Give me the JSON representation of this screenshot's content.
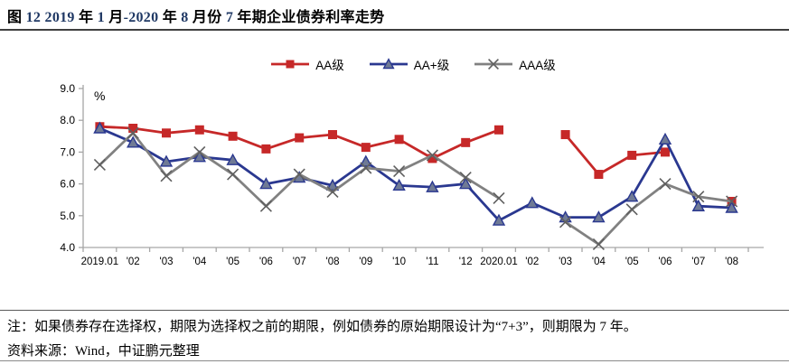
{
  "figure": {
    "title_runs": [
      {
        "text": "图 ",
        "style": "cn"
      },
      {
        "text": "12",
        "style": "num"
      },
      {
        "text": "  ",
        "style": "cn"
      },
      {
        "text": "2019",
        "style": "num"
      },
      {
        "text": " 年 ",
        "style": "cn"
      },
      {
        "text": "1",
        "style": "num"
      },
      {
        "text": " 月",
        "style": "cn"
      },
      {
        "text": "-2020",
        "style": "num"
      },
      {
        "text": " 年 ",
        "style": "cn"
      },
      {
        "text": "8",
        "style": "num"
      },
      {
        "text": " 月份 ",
        "style": "cn"
      },
      {
        "text": "7",
        "style": "num"
      },
      {
        "text": " 年期企业债券利率走势",
        "style": "cn"
      }
    ],
    "note": "注：如果债券存在选择权，期限为选择权之前的期限，例如债券的原始期限设计为“7+3”，则期限为 7 年。",
    "source": "资料来源：Wind，中证鹏元整理"
  },
  "chart_data": {
    "type": "line",
    "title": "2019年1月-2020年8月份7年期企业债券利率走势",
    "unit_label": "%",
    "categories": [
      "2019.01",
      "'02",
      "'03",
      "'04",
      "'05",
      "'06",
      "'07",
      "'08",
      "'09",
      "'10",
      "'11",
      "'12",
      "2020.01",
      "'02",
      "'03",
      "'04",
      "'05",
      "'06",
      "'07",
      "'08"
    ],
    "series": [
      {
        "name": "AA级",
        "marker": "square",
        "color": "#C62828",
        "marker_fill": "#C62828",
        "values": [
          7.8,
          7.75,
          7.6,
          7.7,
          7.5,
          7.1,
          7.45,
          7.55,
          7.15,
          7.4,
          6.8,
          7.3,
          7.7,
          null,
          7.55,
          6.3,
          6.9,
          7.0,
          null,
          5.45
        ]
      },
      {
        "name": "AA+级",
        "marker": "triangle",
        "color": "#2A3890",
        "marker_fill": "#6F7A95",
        "values": [
          7.75,
          7.3,
          6.7,
          6.85,
          6.75,
          6.0,
          6.2,
          5.95,
          6.7,
          5.95,
          5.9,
          6.0,
          4.85,
          5.4,
          4.95,
          4.95,
          5.6,
          7.4,
          5.3,
          5.25
        ]
      },
      {
        "name": "AAA级",
        "marker": "x",
        "color": "#818181",
        "marker_fill": "#5F5F5F",
        "values": [
          6.6,
          7.6,
          6.25,
          7.0,
          6.3,
          5.3,
          6.3,
          5.75,
          6.5,
          6.4,
          6.9,
          6.2,
          5.55,
          null,
          4.8,
          4.1,
          5.2,
          6.0,
          5.6,
          5.45
        ]
      }
    ],
    "ylim": [
      4.0,
      9.0
    ],
    "ytick_step": 1.0,
    "ytick_labels": [
      "4.0",
      "5.0",
      "6.0",
      "7.0",
      "8.0",
      "9.0"
    ],
    "legend_position": "top-center",
    "grid": false,
    "axis_color": "#A6A6A6"
  }
}
